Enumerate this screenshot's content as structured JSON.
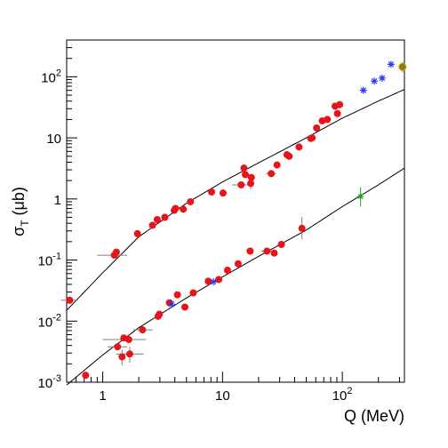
{
  "chart_data": {
    "type": "scatter",
    "xscale": "log",
    "yscale": "log",
    "xlabel": "Q (MeV)",
    "ylabel": "σT (μb)",
    "xlim": [
      0.5,
      330
    ],
    "ylim": [
      0.001,
      400
    ],
    "grid": false,
    "legend": "none",
    "x_ticks": [
      {
        "value": 1,
        "label": "1"
      },
      {
        "value": 10,
        "label": "10"
      },
      {
        "value": 100,
        "label": "10",
        "exp": "2"
      }
    ],
    "y_ticks": [
      {
        "value": 0.001,
        "label": "10",
        "exp": "-3"
      },
      {
        "value": 0.01,
        "label": "10",
        "exp": "-2"
      },
      {
        "value": 0.1,
        "label": "10",
        "exp": "-1"
      },
      {
        "value": 1,
        "label": "1"
      },
      {
        "value": 10,
        "label": "10"
      },
      {
        "value": 100,
        "label": "10",
        "exp": "2"
      }
    ],
    "colors": {
      "red_points": "#e8141b",
      "blue_stars": "#2b36e6",
      "green_stars": "#1fa51f",
      "olive_point": "#8a7d12",
      "curve": "#000000",
      "errorbar": "#7f7f7f"
    },
    "series": [
      {
        "marker": "red-circle",
        "points": [
          {
            "x": 0.53,
            "y": 0.022,
            "xerr": [
              0.45,
              0.62
            ]
          },
          {
            "x": 1.25,
            "y": 0.12,
            "xerr": [
              0.9,
              1.6
            ]
          },
          {
            "x": 1.3,
            "y": 0.135
          },
          {
            "x": 1.95,
            "y": 0.27
          },
          {
            "x": 2.6,
            "y": 0.37
          },
          {
            "x": 2.85,
            "y": 0.46
          },
          {
            "x": 3.3,
            "y": 0.5
          },
          {
            "x": 3.95,
            "y": 0.65
          },
          {
            "x": 4.05,
            "y": 0.7
          },
          {
            "x": 4.7,
            "y": 0.68
          },
          {
            "x": 5.4,
            "y": 0.9
          },
          {
            "x": 8.1,
            "y": 1.3
          },
          {
            "x": 10.1,
            "y": 1.25
          },
          {
            "x": 14.3,
            "y": 1.7,
            "xerr": [
              12,
              18
            ]
          },
          {
            "x": 15.1,
            "y": 3.2
          },
          {
            "x": 15.5,
            "y": 2.5
          },
          {
            "x": 17.2,
            "y": 1.8,
            "yerr": [
              1.45,
              2.2
            ]
          },
          {
            "x": 17.4,
            "y": 2.25
          },
          {
            "x": 25.5,
            "y": 2.6,
            "xerr": [
              23,
              28
            ]
          },
          {
            "x": 28.5,
            "y": 3.6
          },
          {
            "x": 34.5,
            "y": 5.3
          },
          {
            "x": 36.0,
            "y": 5.0
          },
          {
            "x": 43.5,
            "y": 7.1
          },
          {
            "x": 54.5,
            "y": 9.8
          },
          {
            "x": 56.0,
            "y": 10.0
          },
          {
            "x": 61.0,
            "y": 14.5
          },
          {
            "x": 68.0,
            "y": 19.0
          },
          {
            "x": 75.0,
            "y": 20.0
          },
          {
            "x": 87.0,
            "y": 33.0
          },
          {
            "x": 91.0,
            "y": 25.0,
            "yerr": [
              22,
              28
            ]
          },
          {
            "x": 95.0,
            "y": 35.0
          },
          {
            "x": 0.72,
            "y": 0.0013
          },
          {
            "x": 1.33,
            "y": 0.0038,
            "xerr": [
              1.1,
              1.6
            ]
          },
          {
            "x": 1.45,
            "y": 0.0026,
            "yerr": [
              0.0019,
              0.0034
            ]
          },
          {
            "x": 1.5,
            "y": 0.0053
          },
          {
            "x": 1.65,
            "y": 0.005,
            "xerr": [
              1.0,
              2.3
            ]
          },
          {
            "x": 1.68,
            "y": 0.0029,
            "yerr": [
              0.0021,
              0.0038
            ],
            "xerr": [
              1.3,
              2.2
            ]
          },
          {
            "x": 2.15,
            "y": 0.0072,
            "xerr": [
              1.8,
              2.6
            ]
          },
          {
            "x": 2.9,
            "y": 0.012
          },
          {
            "x": 2.97,
            "y": 0.013
          },
          {
            "x": 3.6,
            "y": 0.02
          },
          {
            "x": 4.2,
            "y": 0.027
          },
          {
            "x": 4.85,
            "y": 0.017
          },
          {
            "x": 5.7,
            "y": 0.029
          },
          {
            "x": 7.6,
            "y": 0.045
          },
          {
            "x": 9.3,
            "y": 0.048
          },
          {
            "x": 11.0,
            "y": 0.068
          },
          {
            "x": 13.5,
            "y": 0.087
          },
          {
            "x": 17.0,
            "y": 0.14
          },
          {
            "x": 23.5,
            "y": 0.14,
            "xerr": [
              21,
              26
            ]
          },
          {
            "x": 27.0,
            "y": 0.13
          },
          {
            "x": 31.0,
            "y": 0.18
          },
          {
            "x": 46.0,
            "y": 0.33,
            "yerr": [
              0.22,
              0.5
            ]
          }
        ]
      },
      {
        "marker": "blue-star",
        "points": [
          {
            "x": 3.75,
            "y": 0.019
          },
          {
            "x": 8.4,
            "y": 0.044
          },
          {
            "x": 150.0,
            "y": 60.0
          },
          {
            "x": 185.0,
            "y": 85.0
          },
          {
            "x": 215.0,
            "y": 95.0
          },
          {
            "x": 255.0,
            "y": 160.0
          }
        ]
      },
      {
        "marker": "green-star",
        "points": [
          {
            "x": 142.0,
            "y": 1.1,
            "yerr": [
              0.75,
              1.55
            ]
          }
        ]
      },
      {
        "marker": "olive-circle",
        "points": [
          {
            "x": 318.0,
            "y": 145.0,
            "yerr": [
              118,
              175
            ]
          }
        ]
      }
    ],
    "curves": [
      {
        "points": [
          {
            "x": 0.5,
            "y": 0.015
          },
          {
            "x": 1,
            "y": 0.062
          },
          {
            "x": 2,
            "y": 0.24
          },
          {
            "x": 5,
            "y": 0.85
          },
          {
            "x": 10,
            "y": 1.9
          },
          {
            "x": 20,
            "y": 3.9
          },
          {
            "x": 50,
            "y": 10.0
          },
          {
            "x": 100,
            "y": 21.0
          },
          {
            "x": 200,
            "y": 40.0
          },
          {
            "x": 330,
            "y": 62.0
          }
        ]
      },
      {
        "points": [
          {
            "x": 0.5,
            "y": 0.0009
          },
          {
            "x": 1,
            "y": 0.0028
          },
          {
            "x": 2,
            "y": 0.0078
          },
          {
            "x": 5,
            "y": 0.024
          },
          {
            "x": 10,
            "y": 0.053
          },
          {
            "x": 20,
            "y": 0.115
          },
          {
            "x": 50,
            "y": 0.31
          },
          {
            "x": 100,
            "y": 0.75
          },
          {
            "x": 200,
            "y": 1.7
          },
          {
            "x": 330,
            "y": 3.2
          }
        ]
      }
    ]
  }
}
